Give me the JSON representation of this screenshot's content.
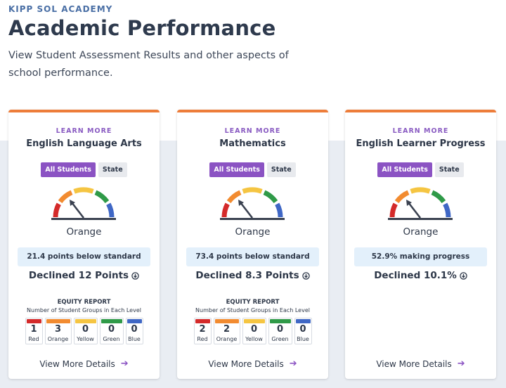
{
  "header": {
    "school": "KIPP SOL ACADEMY",
    "title": "Academic Performance",
    "subtitle": "View Student Assessment Results and other aspects of school performance."
  },
  "colors": {
    "accent_orange": "#ed7d3a",
    "purple": "#8b53c3",
    "red": "#d42a2a",
    "orange": "#f28b30",
    "yellow": "#f5c542",
    "green": "#2f9a48",
    "blue": "#3f67c5"
  },
  "cards": [
    {
      "learn_more": "LEARN MORE",
      "subject": "English Language Arts",
      "filter_all": "All Students",
      "filter_state": "State",
      "level": "Orange",
      "status": "21.4 points below standard",
      "change": "Declined 12 Points",
      "change_icon": "arrow-down-circle-icon",
      "equity": {
        "title": "EQUITY REPORT",
        "subtitle": "Number of Student Groups in Each Level",
        "levels": [
          {
            "label": "Red",
            "count": "1"
          },
          {
            "label": "Orange",
            "count": "3"
          },
          {
            "label": "Yellow",
            "count": "0"
          },
          {
            "label": "Green",
            "count": "0"
          },
          {
            "label": "Blue",
            "count": "0"
          }
        ]
      },
      "view_more": "View More Details"
    },
    {
      "learn_more": "LEARN MORE",
      "subject": "Mathematics",
      "filter_all": "All Students",
      "filter_state": "State",
      "level": "Orange",
      "status": "73.4 points below standard",
      "change": "Declined 8.3 Points",
      "change_icon": "arrow-down-circle-icon",
      "equity": {
        "title": "EQUITY REPORT",
        "subtitle": "Number of Student Groups in Each Level",
        "levels": [
          {
            "label": "Red",
            "count": "2"
          },
          {
            "label": "Orange",
            "count": "2"
          },
          {
            "label": "Yellow",
            "count": "0"
          },
          {
            "label": "Green",
            "count": "0"
          },
          {
            "label": "Blue",
            "count": "0"
          }
        ]
      },
      "view_more": "View More Details"
    },
    {
      "learn_more": "LEARN MORE",
      "subject": "English Learner Progress",
      "filter_all": "All Students",
      "filter_state": "State",
      "level": "Orange",
      "status": "52.9% making progress",
      "change": "Declined 10.1%",
      "change_icon": "arrow-down-circle-icon",
      "view_more": "View More Details"
    }
  ]
}
